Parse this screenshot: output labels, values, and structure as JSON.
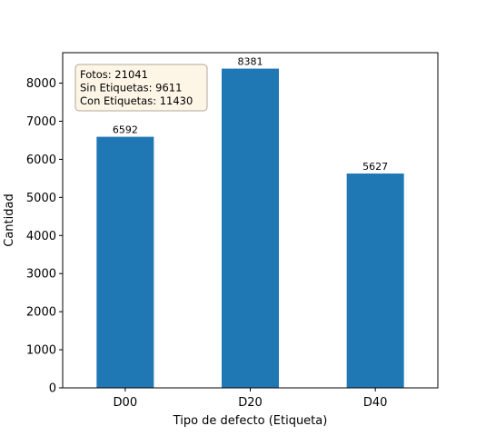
{
  "chart_data": {
    "type": "bar",
    "categories": [
      "D00",
      "D20",
      "D40"
    ],
    "values": [
      6592,
      8381,
      5627
    ],
    "data_labels": [
      "6592",
      "8381",
      "5627"
    ],
    "title": "",
    "xlabel": "Tipo de defecto (Etiqueta)",
    "ylabel": "Cantidad",
    "ylim": [
      0,
      8800
    ],
    "yticks": [
      0,
      1000,
      2000,
      3000,
      4000,
      5000,
      6000,
      7000,
      8000
    ],
    "grid": false,
    "bar_color": "#1f77b4",
    "annotation": {
      "lines": [
        "Fotos: 21041",
        "Sin Etiquetas: 9611",
        "Con Etiquetas: 11430"
      ],
      "placement": "top-left",
      "background": "#fdf5e6",
      "border": "#b0a89a"
    }
  }
}
